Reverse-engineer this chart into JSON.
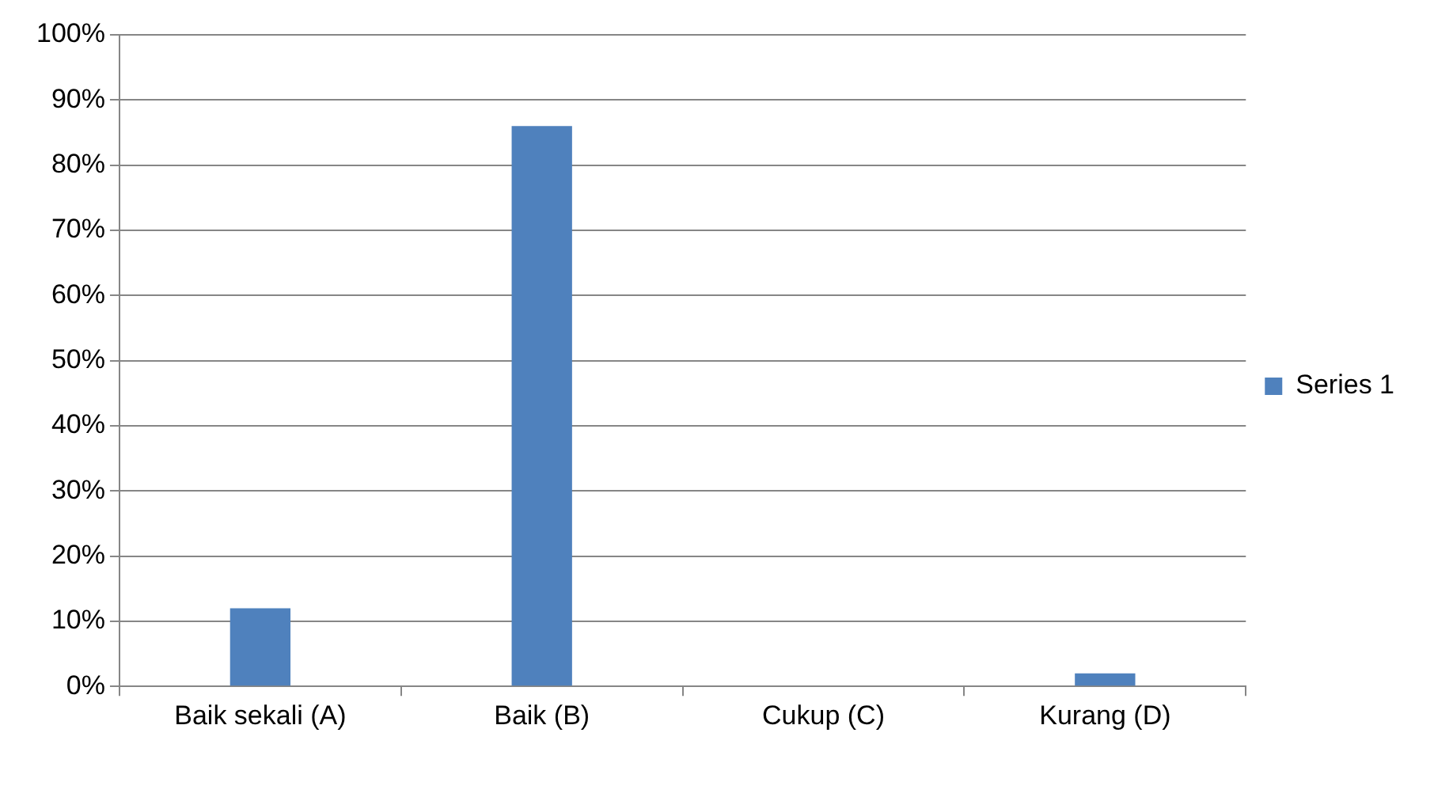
{
  "chart_data": {
    "type": "bar",
    "categories": [
      "Baik sekali (A)",
      "Baik (B)",
      "Cukup (C)",
      "Kurang (D)"
    ],
    "series": [
      {
        "name": "Series 1",
        "color": "#4f81bd",
        "values": [
          12,
          86,
          0,
          2
        ]
      }
    ],
    "ylim": [
      0,
      100
    ],
    "yticks": [
      {
        "value": 0,
        "label": "0%"
      },
      {
        "value": 10,
        "label": "10%"
      },
      {
        "value": 20,
        "label": "20%"
      },
      {
        "value": 30,
        "label": "30%"
      },
      {
        "value": 40,
        "label": "40%"
      },
      {
        "value": 50,
        "label": "50%"
      },
      {
        "value": 60,
        "label": "60%"
      },
      {
        "value": 70,
        "label": "70%"
      },
      {
        "value": 80,
        "label": "80%"
      },
      {
        "value": 90,
        "label": "90%"
      },
      {
        "value": 100,
        "label": "100%"
      }
    ],
    "grid": "y",
    "legend": "right"
  }
}
